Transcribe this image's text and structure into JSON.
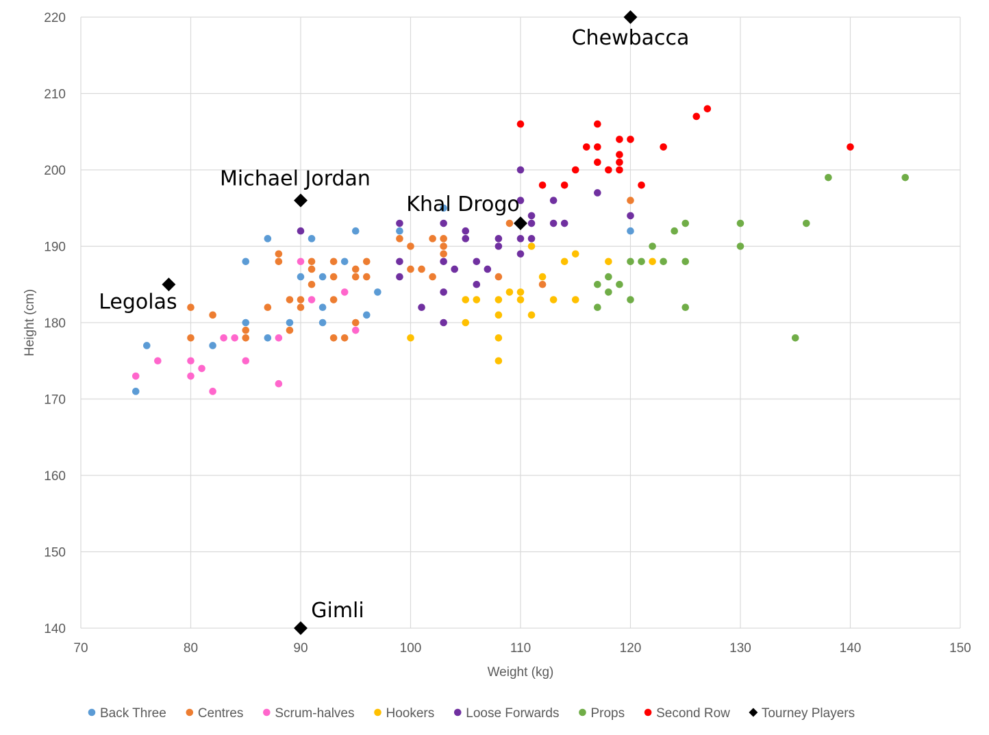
{
  "chart_data": {
    "type": "scatter",
    "title": "",
    "xlabel": "Weight (kg)",
    "ylabel": "Height (cm)",
    "xlim": [
      70,
      150
    ],
    "ylim": [
      140,
      220
    ],
    "xticks": [
      70,
      80,
      90,
      100,
      110,
      120,
      130,
      140,
      150
    ],
    "yticks": [
      140,
      150,
      160,
      170,
      180,
      190,
      200,
      210,
      220
    ],
    "grid": true,
    "legend_position": "bottom",
    "series": [
      {
        "name": "Back Three",
        "color": "#5B9BD5",
        "marker": "circle",
        "points": [
          [
            75,
            171
          ],
          [
            76,
            177
          ],
          [
            82,
            177
          ],
          [
            85,
            188
          ],
          [
            85,
            180
          ],
          [
            87,
            191
          ],
          [
            87,
            178
          ],
          [
            89,
            180
          ],
          [
            90,
            186
          ],
          [
            91,
            191
          ],
          [
            92,
            186
          ],
          [
            92,
            182
          ],
          [
            92,
            180
          ],
          [
            94,
            188
          ],
          [
            95,
            192
          ],
          [
            96,
            181
          ],
          [
            97,
            184
          ],
          [
            99,
            192
          ],
          [
            103,
            195
          ],
          [
            120,
            192
          ]
        ]
      },
      {
        "name": "Centres",
        "color": "#ED7D31",
        "marker": "circle",
        "points": [
          [
            80,
            182
          ],
          [
            80,
            178
          ],
          [
            82,
            181
          ],
          [
            85,
            179
          ],
          [
            85,
            178
          ],
          [
            87,
            182
          ],
          [
            88,
            189
          ],
          [
            88,
            188
          ],
          [
            89,
            183
          ],
          [
            89,
            179
          ],
          [
            90,
            183
          ],
          [
            90,
            182
          ],
          [
            91,
            188
          ],
          [
            91,
            187
          ],
          [
            91,
            185
          ],
          [
            93,
            188
          ],
          [
            93,
            186
          ],
          [
            93,
            183
          ],
          [
            93,
            178
          ],
          [
            94,
            178
          ],
          [
            95,
            187
          ],
          [
            95,
            186
          ],
          [
            95,
            180
          ],
          [
            96,
            188
          ],
          [
            96,
            186
          ],
          [
            99,
            191
          ],
          [
            100,
            190
          ],
          [
            100,
            187
          ],
          [
            101,
            187
          ],
          [
            102,
            191
          ],
          [
            102,
            186
          ],
          [
            103,
            191
          ],
          [
            103,
            190
          ],
          [
            103,
            189
          ],
          [
            108,
            186
          ],
          [
            109,
            193
          ],
          [
            112,
            185
          ],
          [
            120,
            196
          ]
        ]
      },
      {
        "name": "Scrum-halves",
        "color": "#FF66CC",
        "marker": "circle",
        "points": [
          [
            75,
            173
          ],
          [
            77,
            175
          ],
          [
            80,
            175
          ],
          [
            80,
            173
          ],
          [
            81,
            174
          ],
          [
            82,
            171
          ],
          [
            83,
            178
          ],
          [
            84,
            178
          ],
          [
            85,
            175
          ],
          [
            88,
            178
          ],
          [
            88,
            172
          ],
          [
            90,
            188
          ],
          [
            91,
            183
          ],
          [
            94,
            184
          ],
          [
            95,
            179
          ]
        ]
      },
      {
        "name": "Hookers",
        "color": "#FFC000",
        "marker": "circle",
        "points": [
          [
            100,
            178
          ],
          [
            105,
            183
          ],
          [
            105,
            180
          ],
          [
            106,
            183
          ],
          [
            108,
            183
          ],
          [
            108,
            181
          ],
          [
            108,
            178
          ],
          [
            108,
            175
          ],
          [
            109,
            184
          ],
          [
            110,
            184
          ],
          [
            110,
            183
          ],
          [
            111,
            190
          ],
          [
            111,
            181
          ],
          [
            112,
            186
          ],
          [
            113,
            183
          ],
          [
            114,
            188
          ],
          [
            115,
            189
          ],
          [
            115,
            183
          ],
          [
            118,
            188
          ],
          [
            122,
            188
          ]
        ]
      },
      {
        "name": "Loose Forwards",
        "color": "#7030A0",
        "marker": "circle",
        "points": [
          [
            90,
            192
          ],
          [
            99,
            193
          ],
          [
            99,
            188
          ],
          [
            99,
            186
          ],
          [
            101,
            182
          ],
          [
            103,
            193
          ],
          [
            103,
            188
          ],
          [
            103,
            184
          ],
          [
            103,
            180
          ],
          [
            104,
            187
          ],
          [
            105,
            192
          ],
          [
            105,
            191
          ],
          [
            106,
            188
          ],
          [
            106,
            185
          ],
          [
            107,
            187
          ],
          [
            108,
            191
          ],
          [
            108,
            190
          ],
          [
            110,
            200
          ],
          [
            110,
            196
          ],
          [
            110,
            191
          ],
          [
            110,
            189
          ],
          [
            111,
            194
          ],
          [
            111,
            193
          ],
          [
            111,
            191
          ],
          [
            113,
            196
          ],
          [
            113,
            193
          ],
          [
            114,
            193
          ],
          [
            117,
            197
          ],
          [
            120,
            194
          ]
        ]
      },
      {
        "name": "Props",
        "color": "#70AD47",
        "marker": "circle",
        "points": [
          [
            117,
            185
          ],
          [
            117,
            182
          ],
          [
            118,
            186
          ],
          [
            118,
            184
          ],
          [
            119,
            185
          ],
          [
            120,
            188
          ],
          [
            120,
            183
          ],
          [
            121,
            188
          ],
          [
            122,
            190
          ],
          [
            123,
            188
          ],
          [
            124,
            192
          ],
          [
            125,
            193
          ],
          [
            125,
            188
          ],
          [
            125,
            182
          ],
          [
            130,
            193
          ],
          [
            130,
            190
          ],
          [
            135,
            178
          ],
          [
            136,
            193
          ],
          [
            138,
            199
          ],
          [
            145,
            199
          ]
        ]
      },
      {
        "name": "Second Row",
        "color": "#FF0000",
        "marker": "circle",
        "points": [
          [
            110,
            206
          ],
          [
            112,
            198
          ],
          [
            114,
            198
          ],
          [
            115,
            200
          ],
          [
            116,
            203
          ],
          [
            117,
            206
          ],
          [
            117,
            203
          ],
          [
            117,
            201
          ],
          [
            118,
            200
          ],
          [
            119,
            204
          ],
          [
            119,
            202
          ],
          [
            119,
            201
          ],
          [
            119,
            200
          ],
          [
            120,
            204
          ],
          [
            121,
            198
          ],
          [
            123,
            203
          ],
          [
            126,
            207
          ],
          [
            127,
            208
          ],
          [
            140,
            203
          ]
        ]
      },
      {
        "name": "Tourney Players",
        "color": "#000000",
        "marker": "diamond",
        "points": [
          [
            78,
            185
          ],
          [
            90,
            196
          ],
          [
            90,
            140
          ],
          [
            110,
            193
          ],
          [
            120,
            220
          ]
        ]
      }
    ],
    "annotations": [
      {
        "text": "Chewbacca",
        "x": 120,
        "y": 220
      },
      {
        "text": "Michael Jordan",
        "x": 90,
        "y": 196
      },
      {
        "text": "Khal Drogo",
        "x": 110,
        "y": 193
      },
      {
        "text": "Legolas",
        "x": 78,
        "y": 185
      },
      {
        "text": "Gimli",
        "x": 90,
        "y": 140
      }
    ]
  }
}
